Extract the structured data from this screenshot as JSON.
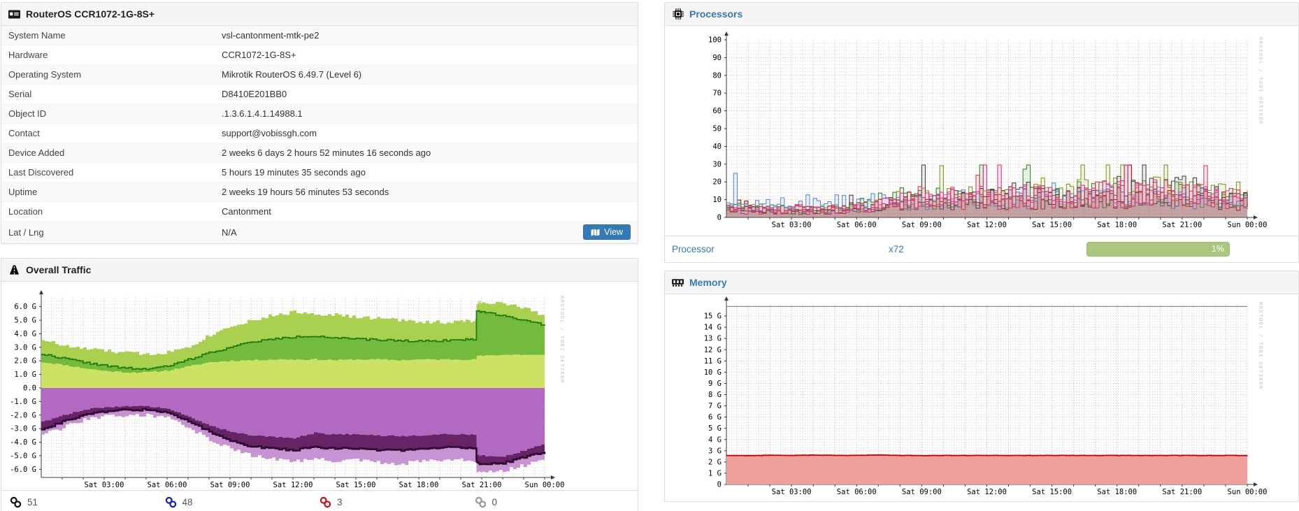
{
  "theme": {
    "link_color": "#337ab7",
    "button_color": "#337ab7",
    "bar_color": "#a9c87e",
    "header_bg": "#f5f5f5"
  },
  "device_panel": {
    "title": "RouterOS CCR1072-1G-8S+",
    "rows": [
      {
        "label": "System Name",
        "value": "vsl-cantonment-mtk-pe2"
      },
      {
        "label": "Hardware",
        "value": "CCR1072-1G-8S+"
      },
      {
        "label": "Operating System",
        "value": "Mikrotik RouterOS 6.49.7 (Level 6)"
      },
      {
        "label": "Serial",
        "value": "D8410E201BB0"
      },
      {
        "label": "Object ID",
        "value": ".1.3.6.1.4.1.14988.1"
      },
      {
        "label": "Contact",
        "value": "support@vobissgh.com"
      },
      {
        "label": "Device Added",
        "value": "2 weeks 6 days 2 hours 52 minutes 16 seconds ago"
      },
      {
        "label": "Last Discovered",
        "value": "5 hours 19 minutes 35 seconds ago"
      },
      {
        "label": "Uptime",
        "value": "2 weeks 19 hours 56 minutes 53 seconds"
      },
      {
        "label": "Location",
        "value": "Cantonment"
      },
      {
        "label": "Lat / Lng",
        "value": "N/A",
        "view_label": "View"
      }
    ]
  },
  "traffic_panel": {
    "title": "Overall Traffic",
    "port_counts": [
      {
        "name": "ports-total",
        "value": "51",
        "color": "#111111"
      },
      {
        "name": "ports-up",
        "value": "48",
        "color": "#1919c8"
      },
      {
        "name": "ports-down",
        "value": "3",
        "color": "#cc1111"
      },
      {
        "name": "ports-ignored",
        "value": "0",
        "color": "#9a9a9a"
      }
    ]
  },
  "processors_panel": {
    "title": "Processors",
    "row": {
      "link": "Processor",
      "count": "x72",
      "percent": "1%"
    }
  },
  "memory_panel": {
    "title": "Memory"
  },
  "chart_data": [
    {
      "id": "traffic",
      "type": "area",
      "title": "Overall Traffic",
      "unit": "bits/s",
      "watermark": "RRDTOOL / TOBI OETIKER",
      "xlabels": [
        "Sat 03:00",
        "Sat 06:00",
        "Sat 09:00",
        "Sat 12:00",
        "Sat 15:00",
        "Sat 18:00",
        "Sat 21:00",
        "Sun 00:00"
      ],
      "ylim": [
        -6.6,
        6.6
      ],
      "yticks": [
        {
          "v": 6,
          "l": "6.0 G"
        },
        {
          "v": 5,
          "l": "5.0 G"
        },
        {
          "v": 4,
          "l": "4.0 G"
        },
        {
          "v": 3,
          "l": "3.0 G"
        },
        {
          "v": 2,
          "l": "2.0 G"
        },
        {
          "v": 1,
          "l": "1.0 G"
        },
        {
          "v": 0,
          "l": "0.0"
        },
        {
          "v": -1,
          "l": "-1.0 G"
        },
        {
          "v": -2,
          "l": "-2.0 G"
        },
        {
          "v": -3,
          "l": "-3.0 G"
        },
        {
          "v": -4,
          "l": "-4.0 G"
        },
        {
          "v": -5,
          "l": "-5.0 G"
        },
        {
          "v": -6,
          "l": "-6.0 G"
        }
      ],
      "hours": [
        0,
        1,
        2,
        3,
        4,
        5,
        6,
        7,
        8,
        9,
        10,
        11,
        12,
        13,
        14,
        15,
        16,
        17,
        18,
        19,
        20,
        20.7,
        20.75,
        21,
        22,
        23,
        24
      ],
      "series": {
        "in_min": [
          1.9,
          1.7,
          1.45,
          1.25,
          1.15,
          1.15,
          1.3,
          1.6,
          1.9,
          2.0,
          2.05,
          2.1,
          2.1,
          2.1,
          2.05,
          2.1,
          2.1,
          2.05,
          2.1,
          2.1,
          2.1,
          2.1,
          2.35,
          2.4,
          2.45,
          2.45,
          2.4
        ],
        "in_avg": [
          2.5,
          2.2,
          1.9,
          1.65,
          1.45,
          1.4,
          1.6,
          2.1,
          2.6,
          3.0,
          3.4,
          3.6,
          3.75,
          3.85,
          3.7,
          3.6,
          3.55,
          3.5,
          3.45,
          3.5,
          3.55,
          3.6,
          5.7,
          5.6,
          5.35,
          5.0,
          4.6
        ],
        "in_max": [
          3.6,
          3.1,
          2.9,
          2.75,
          2.6,
          2.5,
          2.65,
          3.1,
          3.9,
          4.6,
          5.0,
          5.35,
          5.6,
          5.5,
          5.4,
          5.2,
          5.15,
          5.0,
          4.9,
          4.85,
          4.9,
          5.0,
          6.3,
          6.35,
          6.2,
          5.9,
          5.2
        ],
        "out_min": [
          2.5,
          2.0,
          1.6,
          1.4,
          1.35,
          1.35,
          1.55,
          2.15,
          2.8,
          3.2,
          3.5,
          3.6,
          3.7,
          3.3,
          3.45,
          3.4,
          3.5,
          3.55,
          3.5,
          3.4,
          3.4,
          3.45,
          4.9,
          5.0,
          5.05,
          4.6,
          4.1
        ],
        "out_avg": [
          3.1,
          2.5,
          2.0,
          1.75,
          1.6,
          1.6,
          1.8,
          2.5,
          3.2,
          3.9,
          4.3,
          4.45,
          4.6,
          4.35,
          4.5,
          4.45,
          4.6,
          4.6,
          4.5,
          4.4,
          4.4,
          4.45,
          5.5,
          5.6,
          5.55,
          5.1,
          4.7
        ],
        "out_max": [
          3.5,
          2.9,
          2.35,
          2.1,
          2.0,
          2.0,
          2.2,
          2.95,
          3.8,
          4.5,
          5.0,
          5.2,
          5.4,
          5.2,
          5.4,
          5.3,
          5.5,
          5.6,
          5.4,
          5.3,
          5.3,
          5.35,
          6.1,
          6.25,
          6.1,
          5.7,
          5.3
        ]
      },
      "colors": {
        "in_low": "#cde163",
        "in_mid": "#72bb3c",
        "in_line": "#1e7d0c",
        "in_high": "#a9d14f",
        "out_low": "#b169c1",
        "out_mid": "#662366",
        "out_line": "#2e0b30",
        "out_high": "#c893d2"
      }
    },
    {
      "id": "processors",
      "type": "line",
      "title": "Processors",
      "unit": "percent",
      "watermark": "RRDTOOL / TOBI OETIKER",
      "xlabels": [
        "Sat 03:00",
        "Sat 06:00",
        "Sat 09:00",
        "Sat 12:00",
        "Sat 15:00",
        "Sat 18:00",
        "Sat 21:00",
        "Sun 00:00"
      ],
      "ylim": [
        0,
        100
      ],
      "yticks": [
        {
          "v": 100,
          "l": "100"
        },
        {
          "v": 90,
          "l": "90"
        },
        {
          "v": 80,
          "l": "80"
        },
        {
          "v": 70,
          "l": "70"
        },
        {
          "v": 60,
          "l": "60"
        },
        {
          "v": 50,
          "l": "50"
        },
        {
          "v": 40,
          "l": "40"
        },
        {
          "v": 30,
          "l": "30"
        },
        {
          "v": 20,
          "l": "20"
        },
        {
          "v": 10,
          "l": "10"
        },
        {
          "v": 0,
          "l": "0"
        }
      ],
      "noise": 0.55,
      "series": [
        {
          "name": "core-red",
          "color": "#cc0000",
          "values": [
            7,
            6,
            5,
            5,
            4,
            5,
            6,
            7,
            9,
            10,
            10,
            11,
            11,
            10,
            11,
            10,
            11,
            11,
            12,
            12,
            12,
            12,
            11,
            10,
            9
          ]
        },
        {
          "name": "core-green",
          "color": "#2e8b22",
          "values": [
            6,
            5,
            5,
            4,
            4,
            5,
            7,
            9,
            10,
            10,
            11,
            11,
            12,
            12,
            12,
            12,
            13,
            13,
            13,
            14,
            14,
            13,
            12,
            11,
            10
          ]
        },
        {
          "name": "core-olive",
          "color": "#7d9b1f",
          "values": [
            5,
            5,
            4,
            4,
            4,
            5,
            6,
            8,
            10,
            11,
            11,
            12,
            12,
            12,
            13,
            13,
            14,
            14,
            15,
            15,
            15,
            14,
            13,
            12,
            11
          ]
        },
        {
          "name": "core-blue",
          "color": "#5b8ddb",
          "values": [
            8,
            7,
            7,
            8,
            9,
            9,
            8,
            9,
            9,
            10,
            10,
            10,
            11,
            12,
            12,
            13,
            12,
            12,
            13,
            13,
            12,
            12,
            11,
            10,
            10
          ]
        },
        {
          "name": "core-gray",
          "color": "#474747",
          "values": [
            4,
            4,
            3,
            3,
            3,
            4,
            5,
            7,
            9,
            10,
            10,
            11,
            12,
            12,
            13,
            13,
            13,
            14,
            15,
            15,
            15,
            16,
            14,
            12,
            11
          ]
        },
        {
          "name": "core-crimson",
          "color": "#d8385e",
          "values": [
            4,
            4,
            4,
            3,
            3,
            4,
            5,
            7,
            8,
            9,
            10,
            10,
            11,
            11,
            11,
            12,
            12,
            13,
            13,
            14,
            14,
            13,
            12,
            11,
            10
          ]
        },
        {
          "name": "core-pink",
          "color": "#e8308a",
          "values": [
            5,
            4,
            4,
            4,
            4,
            4,
            5,
            7,
            9,
            10,
            11,
            13,
            14,
            12,
            12,
            12,
            13,
            13,
            14,
            15,
            15,
            14,
            14,
            12,
            11
          ]
        }
      ]
    },
    {
      "id": "memory",
      "type": "area",
      "title": "Memory",
      "unit": "bytes",
      "watermark": "RRDTOOL / TOBI OETIKER",
      "xlabels": [
        "Sat 03:00",
        "Sat 06:00",
        "Sat 09:00",
        "Sat 12:00",
        "Sat 15:00",
        "Sat 18:00",
        "Sat 21:00",
        "Sun 00:00"
      ],
      "ylim": [
        0,
        16
      ],
      "yticks": [
        {
          "v": 15,
          "l": "15 G"
        },
        {
          "v": 14,
          "l": "14 G"
        },
        {
          "v": 13,
          "l": "13 G"
        },
        {
          "v": 12,
          "l": "12 G"
        },
        {
          "v": 11,
          "l": "11 G"
        },
        {
          "v": 10,
          "l": "10 G"
        },
        {
          "v": 9,
          "l": "9 G"
        },
        {
          "v": 8,
          "l": "8 G"
        },
        {
          "v": 7,
          "l": "7 G"
        },
        {
          "v": 6,
          "l": "6 G"
        },
        {
          "v": 5,
          "l": "5 G"
        },
        {
          "v": 4,
          "l": "4 G"
        },
        {
          "v": 3,
          "l": "3 G"
        },
        {
          "v": 2,
          "l": "2 G"
        },
        {
          "v": 1,
          "l": "1 G"
        },
        {
          "v": 0,
          "l": "0"
        }
      ],
      "series": [
        {
          "name": "memory-used",
          "color_line": "#c40000",
          "color_fill": "#f09f9f",
          "values": [
            2.58,
            2.57,
            2.6,
            2.58,
            2.62,
            2.58,
            2.59,
            2.62,
            2.58,
            2.57,
            2.58,
            2.58,
            2.58,
            2.58,
            2.58,
            2.58,
            2.58,
            2.58,
            2.58,
            2.58,
            2.58,
            2.58,
            2.58,
            2.58,
            2.58
          ]
        },
        {
          "name": "memory-total",
          "color_line": "#8f8f8f",
          "values": [
            15.85,
            15.85,
            15.85,
            15.85,
            15.85,
            15.85,
            15.85,
            15.85,
            15.85,
            15.85,
            15.85,
            15.85,
            15.85,
            15.85,
            15.85,
            15.85,
            15.85,
            15.85,
            15.85,
            15.85,
            15.85,
            15.85,
            15.85,
            15.85,
            15.85
          ]
        }
      ]
    }
  ]
}
